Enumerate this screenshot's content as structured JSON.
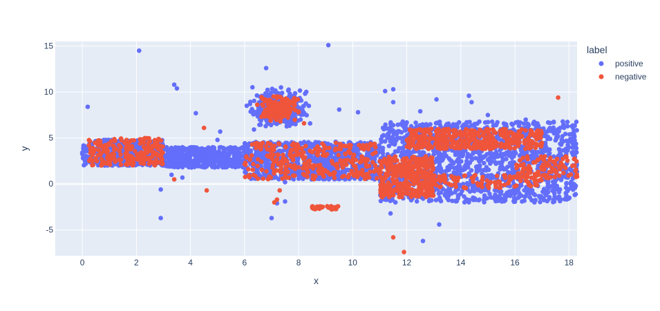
{
  "chart_data": {
    "type": "scatter",
    "xlabel": "x",
    "ylabel": "y",
    "xlim": [
      -1.0,
      18.3
    ],
    "ylim": [
      -7.8,
      15.5
    ],
    "x_ticks": [
      0,
      2,
      4,
      6,
      8,
      10,
      12,
      14,
      16,
      18
    ],
    "y_ticks": [
      -5,
      0,
      5,
      10,
      15
    ],
    "grid": true,
    "legend": {
      "title": "label",
      "placement": "top-right"
    },
    "colors": {
      "plot_bg": "#e5ecf6",
      "grid": "#ffffff",
      "positive": "#636efa",
      "negative": "#ef553b"
    },
    "clusters": [
      {
        "series": "positive",
        "shape": "band",
        "x": [
          0,
          3
        ],
        "y": [
          2.0,
          4.8
        ],
        "count": 500
      },
      {
        "series": "positive",
        "shape": "band",
        "x": [
          3,
          6
        ],
        "y": [
          1.8,
          4.0
        ],
        "count": 450
      },
      {
        "series": "positive",
        "shape": "band",
        "x": [
          6,
          11
        ],
        "y": [
          0.5,
          4.6
        ],
        "count": 900
      },
      {
        "series": "positive",
        "shape": "band",
        "x": [
          11,
          18.3
        ],
        "y": [
          -2.0,
          6.8
        ],
        "count": 1500
      },
      {
        "series": "positive",
        "shape": "blob",
        "x": [
          6.0,
          8.5
        ],
        "y": [
          5.5,
          10.8
        ],
        "count": 450
      },
      {
        "series": "negative",
        "shape": "band",
        "x": [
          0.2,
          3
        ],
        "y": [
          2.0,
          5.0
        ],
        "count": 220
      },
      {
        "series": "negative",
        "shape": "band",
        "x": [
          6,
          11
        ],
        "y": [
          0.5,
          4.5
        ],
        "count": 300
      },
      {
        "series": "negative",
        "shape": "band",
        "x": [
          11,
          13
        ],
        "y": [
          -1.5,
          3.0
        ],
        "count": 350
      },
      {
        "series": "negative",
        "shape": "band",
        "x": [
          12,
          17
        ],
        "y": [
          3.8,
          6.0
        ],
        "count": 400
      },
      {
        "series": "negative",
        "shape": "band",
        "x": [
          13,
          17
        ],
        "y": [
          -0.5,
          1.0
        ],
        "count": 100
      },
      {
        "series": "negative",
        "shape": "band",
        "x": [
          16,
          18.3
        ],
        "y": [
          0.6,
          3.0
        ],
        "count": 100
      },
      {
        "series": "negative",
        "shape": "blob",
        "x": [
          6.3,
          8.3
        ],
        "y": [
          6.5,
          10.2
        ],
        "count": 180
      },
      {
        "series": "negative",
        "shape": "band",
        "x": [
          8.5,
          9.5
        ],
        "y": [
          -2.8,
          -2.4
        ],
        "count": 40
      }
    ],
    "series": [
      {
        "name": "positive",
        "points": [
          [
            2.1,
            14.5
          ],
          [
            9.1,
            15.1
          ],
          [
            6.8,
            12.6
          ],
          [
            3.4,
            10.8
          ],
          [
            3.5,
            10.4
          ],
          [
            0.2,
            8.4
          ],
          [
            4.2,
            7.7
          ],
          [
            14.3,
            9.6
          ],
          [
            11.5,
            10.3
          ],
          [
            11.2,
            10.1
          ],
          [
            9.5,
            8.1
          ],
          [
            10.2,
            7.8
          ],
          [
            11.5,
            8.9
          ],
          [
            12.5,
            7.9
          ],
          [
            13.1,
            9.2
          ],
          [
            14.4,
            8.9
          ],
          [
            15.0,
            7.5
          ],
          [
            16.4,
            7.0
          ],
          [
            17.9,
            4.7
          ],
          [
            5.1,
            5.7
          ],
          [
            5.0,
            4.8
          ],
          [
            2.9,
            -0.6
          ],
          [
            2.9,
            -3.7
          ],
          [
            7.0,
            -3.7
          ],
          [
            7.2,
            -2.1
          ],
          [
            7.5,
            -1.9
          ],
          [
            11.4,
            -3.2
          ],
          [
            13.2,
            -4.4
          ],
          [
            12.6,
            -6.2
          ],
          [
            3.7,
            0.7
          ],
          [
            3.3,
            1.0
          ],
          [
            7.5,
            0.2
          ],
          [
            18.2,
            1.0
          ]
        ]
      },
      {
        "name": "negative",
        "points": [
          [
            17.6,
            9.4
          ],
          [
            4.5,
            6.1
          ],
          [
            4.6,
            -0.7
          ],
          [
            3.4,
            0.5
          ],
          [
            7.2,
            -1.7
          ],
          [
            7.3,
            -0.7
          ],
          [
            11.9,
            -7.4
          ],
          [
            11.5,
            -5.8
          ],
          [
            7.1,
            -2.0
          ],
          [
            8.2,
            6.6
          ],
          [
            18.3,
            0.8
          ]
        ]
      }
    ]
  }
}
